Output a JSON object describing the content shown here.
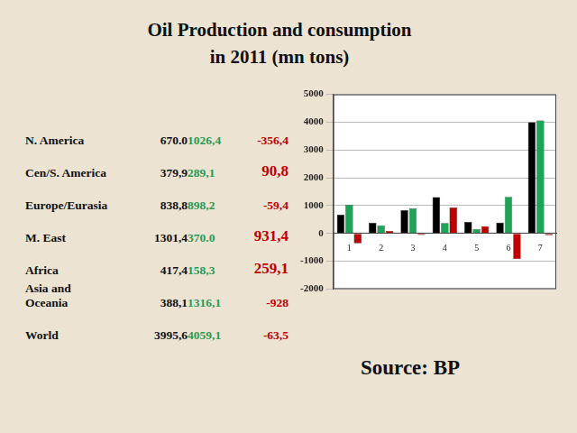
{
  "title": [
    "Oil Production and consumption",
    "in 2011 (mn tons)"
  ],
  "table": {
    "rows": [
      [
        "N. America",
        "670.0",
        "1026,4",
        "-356,4"
      ],
      [
        "Cen/S. America",
        "379,9",
        "289,1",
        "90,8"
      ],
      [
        "Europe/Eurasia",
        "838,8",
        "898,2",
        "-59,4"
      ],
      [
        "M. East",
        "1301,4",
        "370.0",
        "931,4"
      ],
      [
        "Africa",
        "417,4",
        "158,3",
        "259,1"
      ],
      [
        "Asia and\nOceania",
        "388,1",
        "1316,1",
        "-928"
      ],
      [
        "World",
        "3995,6",
        "4059,1",
        "-63,5"
      ]
    ]
  },
  "source": "Source:  BP",
  "chart_data": {
    "type": "bar",
    "categories": [
      "1",
      "2",
      "3",
      "4",
      "5",
      "6",
      "7"
    ],
    "series": [
      {
        "color": "#000000",
        "values": [
          670.0,
          379.9,
          838.8,
          1301.4,
          417.4,
          388.1,
          3995.6
        ]
      },
      {
        "color": "#1fa35a",
        "values": [
          1026.4,
          289.1,
          898.2,
          370.0,
          158.3,
          1316.1,
          4059.1
        ]
      },
      {
        "color": "#c00000",
        "values": [
          -356.4,
          90.8,
          -59.4,
          931.4,
          259.1,
          -928,
          -63.5
        ]
      }
    ],
    "ylim": [
      -2000,
      5000
    ],
    "yticks": [
      -2000,
      -1000,
      0,
      1000,
      2000,
      3000,
      4000,
      5000
    ],
    "grid": true
  }
}
